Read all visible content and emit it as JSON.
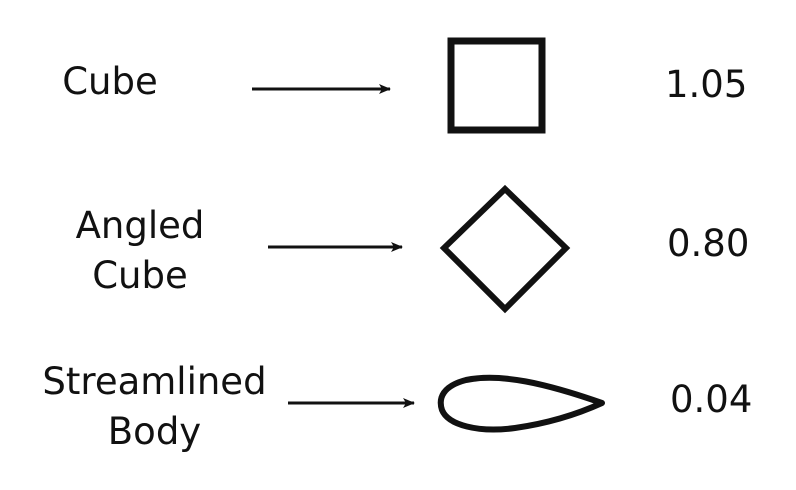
{
  "rows": [
    {
      "label_lines": [
        "Cube"
      ],
      "shape": "square",
      "value": "1.05"
    },
    {
      "label_lines": [
        "Angled",
        "Cube"
      ],
      "shape": "diamond",
      "value": "0.80"
    },
    {
      "label_lines": [
        "Streamlined",
        "Body"
      ],
      "shape": "teardrop",
      "value": "0.04"
    }
  ],
  "colors": {
    "ink": "#111111",
    "background": "#ffffff"
  }
}
